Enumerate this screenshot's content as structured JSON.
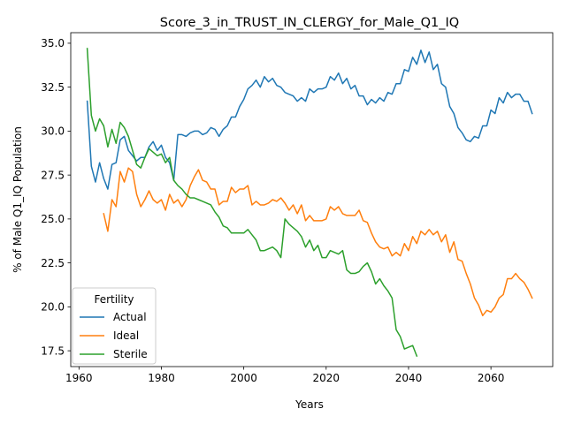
{
  "chart_data": {
    "type": "line",
    "title": "Score_3_in_TRUST_IN_CLERGY_for_Male_Q1_IQ",
    "xlabel": "Years",
    "ylabel": "% of Male Q1_IQ Population",
    "xlim": [
      1958,
      2075
    ],
    "ylim": [
      16.6,
      35.6
    ],
    "xticks": [
      1960,
      1980,
      2000,
      2020,
      2040,
      2060
    ],
    "yticks": [
      17.5,
      20.0,
      22.5,
      25.0,
      27.5,
      30.0,
      32.5,
      35.0
    ],
    "xtick_labels": [
      "1960",
      "1980",
      "2000",
      "2020",
      "2040",
      "2060"
    ],
    "ytick_labels": [
      "17.5",
      "20.0",
      "22.5",
      "25.0",
      "27.5",
      "30.0",
      "32.5",
      "35.0"
    ],
    "grid": false,
    "legend": {
      "title": "Fertility",
      "location": "lower-left"
    },
    "series": [
      {
        "name": "Actual",
        "color": "#1f77b4",
        "x": [
          1962,
          1963,
          1964,
          1965,
          1966,
          1967,
          1968,
          1969,
          1970,
          1971,
          1972,
          1973,
          1974,
          1975,
          1976,
          1977,
          1978,
          1979,
          1980,
          1981,
          1982,
          1983,
          1984,
          1985,
          1986,
          1987,
          1988,
          1989,
          1990,
          1991,
          1992,
          1993,
          1994,
          1995,
          1996,
          1997,
          1998,
          1999,
          2000,
          2001,
          2002,
          2003,
          2004,
          2005,
          2006,
          2007,
          2008,
          2009,
          2010,
          2011,
          2012,
          2013,
          2014,
          2015,
          2016,
          2017,
          2018,
          2019,
          2020,
          2021,
          2022,
          2023,
          2024,
          2025,
          2026,
          2027,
          2028,
          2029,
          2030,
          2031,
          2032,
          2033,
          2034,
          2035,
          2036,
          2037,
          2038,
          2039,
          2040,
          2041,
          2042,
          2043,
          2044,
          2045,
          2046,
          2047,
          2048,
          2049,
          2050,
          2051,
          2052,
          2053,
          2054,
          2055,
          2056,
          2057,
          2058,
          2059,
          2060,
          2061,
          2062,
          2063,
          2064,
          2065,
          2066,
          2067,
          2068,
          2069,
          2070
        ],
        "y": [
          31.7,
          28.0,
          27.1,
          28.2,
          27.3,
          26.7,
          28.1,
          28.2,
          29.5,
          29.7,
          28.9,
          28.6,
          28.3,
          28.5,
          28.5,
          29.1,
          29.4,
          28.9,
          29.2,
          28.5,
          28.2,
          27.2,
          29.8,
          29.8,
          29.7,
          29.9,
          30.0,
          30.0,
          29.8,
          29.9,
          30.2,
          30.1,
          29.7,
          30.1,
          30.3,
          30.8,
          30.8,
          31.4,
          31.8,
          32.4,
          32.6,
          32.9,
          32.5,
          33.1,
          32.8,
          33.0,
          32.6,
          32.5,
          32.2,
          32.1,
          32.0,
          31.7,
          31.9,
          31.7,
          32.4,
          32.2,
          32.4,
          32.4,
          32.5,
          33.1,
          32.9,
          33.3,
          32.7,
          33.0,
          32.4,
          32.6,
          32.0,
          32.0,
          31.5,
          31.8,
          31.6,
          31.9,
          31.7,
          32.2,
          32.1,
          32.7,
          32.7,
          33.5,
          33.4,
          34.2,
          33.8,
          34.6,
          33.9,
          34.5,
          33.5,
          33.8,
          32.7,
          32.5,
          31.4,
          31.0,
          30.2,
          29.9,
          29.5,
          29.4,
          29.7,
          29.6,
          30.3,
          30.3,
          31.2,
          31.0,
          31.9,
          31.6,
          32.2,
          31.9,
          32.1,
          32.1,
          31.7,
          31.7,
          31.0
        ]
      },
      {
        "name": "Ideal",
        "color": "#ff7f0e",
        "x": [
          1966,
          1967,
          1968,
          1969,
          1970,
          1971,
          1972,
          1973,
          1974,
          1975,
          1976,
          1977,
          1978,
          1979,
          1980,
          1981,
          1982,
          1983,
          1984,
          1985,
          1986,
          1987,
          1988,
          1989,
          1990,
          1991,
          1992,
          1993,
          1994,
          1995,
          1996,
          1997,
          1998,
          1999,
          2000,
          2001,
          2002,
          2003,
          2004,
          2005,
          2006,
          2007,
          2008,
          2009,
          2010,
          2011,
          2012,
          2013,
          2014,
          2015,
          2016,
          2017,
          2018,
          2019,
          2020,
          2021,
          2022,
          2023,
          2024,
          2025,
          2026,
          2027,
          2028,
          2029,
          2030,
          2031,
          2032,
          2033,
          2034,
          2035,
          2036,
          2037,
          2038,
          2039,
          2040,
          2041,
          2042,
          2043,
          2044,
          2045,
          2046,
          2047,
          2048,
          2049,
          2050,
          2051,
          2052,
          2053,
          2054,
          2055,
          2056,
          2057,
          2058,
          2059,
          2060,
          2061,
          2062,
          2063,
          2064,
          2065,
          2066,
          2067,
          2068,
          2069,
          2070
        ],
        "y": [
          25.3,
          24.3,
          26.1,
          25.7,
          27.7,
          27.1,
          27.9,
          27.7,
          26.4,
          25.7,
          26.1,
          26.6,
          26.1,
          25.9,
          26.1,
          25.5,
          26.4,
          25.9,
          26.1,
          25.7,
          26.1,
          26.9,
          27.4,
          27.8,
          27.2,
          27.1,
          26.7,
          26.7,
          25.8,
          26.0,
          26.0,
          26.8,
          26.5,
          26.7,
          26.7,
          26.9,
          25.8,
          26.0,
          25.8,
          25.8,
          25.9,
          26.1,
          26.0,
          26.2,
          25.9,
          25.5,
          25.8,
          25.3,
          25.8,
          24.9,
          25.2,
          24.9,
          24.9,
          24.9,
          25.0,
          25.7,
          25.5,
          25.7,
          25.3,
          25.2,
          25.2,
          25.2,
          25.5,
          24.9,
          24.8,
          24.2,
          23.7,
          23.4,
          23.3,
          23.4,
          22.9,
          23.1,
          22.9,
          23.6,
          23.2,
          24.0,
          23.6,
          24.3,
          24.1,
          24.4,
          24.1,
          24.3,
          23.7,
          24.1,
          23.1,
          23.7,
          22.7,
          22.6,
          21.9,
          21.3,
          20.5,
          20.1,
          19.5,
          19.8,
          19.7,
          20.0,
          20.5,
          20.7,
          21.6,
          21.6,
          21.9,
          21.6,
          21.4,
          21.0,
          20.5
        ]
      },
      {
        "name": "Sterile",
        "color": "#2ca02c",
        "x": [
          1962,
          1963,
          1964,
          1965,
          1966,
          1967,
          1968,
          1969,
          1970,
          1971,
          1972,
          1973,
          1974,
          1975,
          1976,
          1977,
          1978,
          1979,
          1980,
          1981,
          1982,
          1983,
          1984,
          1985,
          1986,
          1987,
          1988,
          1989,
          1990,
          1991,
          1992,
          1993,
          1994,
          1995,
          1996,
          1997,
          1998,
          1999,
          2000,
          2001,
          2002,
          2003,
          2004,
          2005,
          2006,
          2007,
          2008,
          2009,
          2010,
          2011,
          2012,
          2013,
          2014,
          2015,
          2016,
          2017,
          2018,
          2019,
          2020,
          2021,
          2022,
          2023,
          2024,
          2025,
          2026,
          2027,
          2028,
          2029,
          2030,
          2031,
          2032,
          2033,
          2034,
          2035,
          2036,
          2037,
          2038,
          2039,
          2040,
          2041,
          2042
        ],
        "y": [
          34.7,
          30.9,
          30.0,
          30.7,
          30.3,
          29.1,
          30.1,
          29.3,
          30.5,
          30.2,
          29.7,
          28.9,
          28.1,
          27.9,
          28.5,
          29.0,
          28.8,
          28.6,
          28.7,
          28.2,
          28.5,
          27.2,
          26.9,
          26.7,
          26.4,
          26.2,
          26.2,
          26.1,
          26.0,
          25.9,
          25.8,
          25.4,
          25.1,
          24.6,
          24.5,
          24.2,
          24.2,
          24.2,
          24.2,
          24.4,
          24.1,
          23.8,
          23.2,
          23.2,
          23.3,
          23.4,
          23.2,
          22.8,
          25.0,
          24.7,
          24.5,
          24.3,
          24.0,
          23.4,
          23.8,
          23.2,
          23.5,
          22.8,
          22.8,
          23.2,
          23.1,
          23.0,
          23.2,
          22.1,
          21.9,
          21.9,
          22.0,
          22.3,
          22.5,
          22.0,
          21.3,
          21.6,
          21.2,
          20.9,
          20.5,
          18.7,
          18.3,
          17.6,
          17.7,
          17.8,
          17.2
        ]
      }
    ]
  }
}
